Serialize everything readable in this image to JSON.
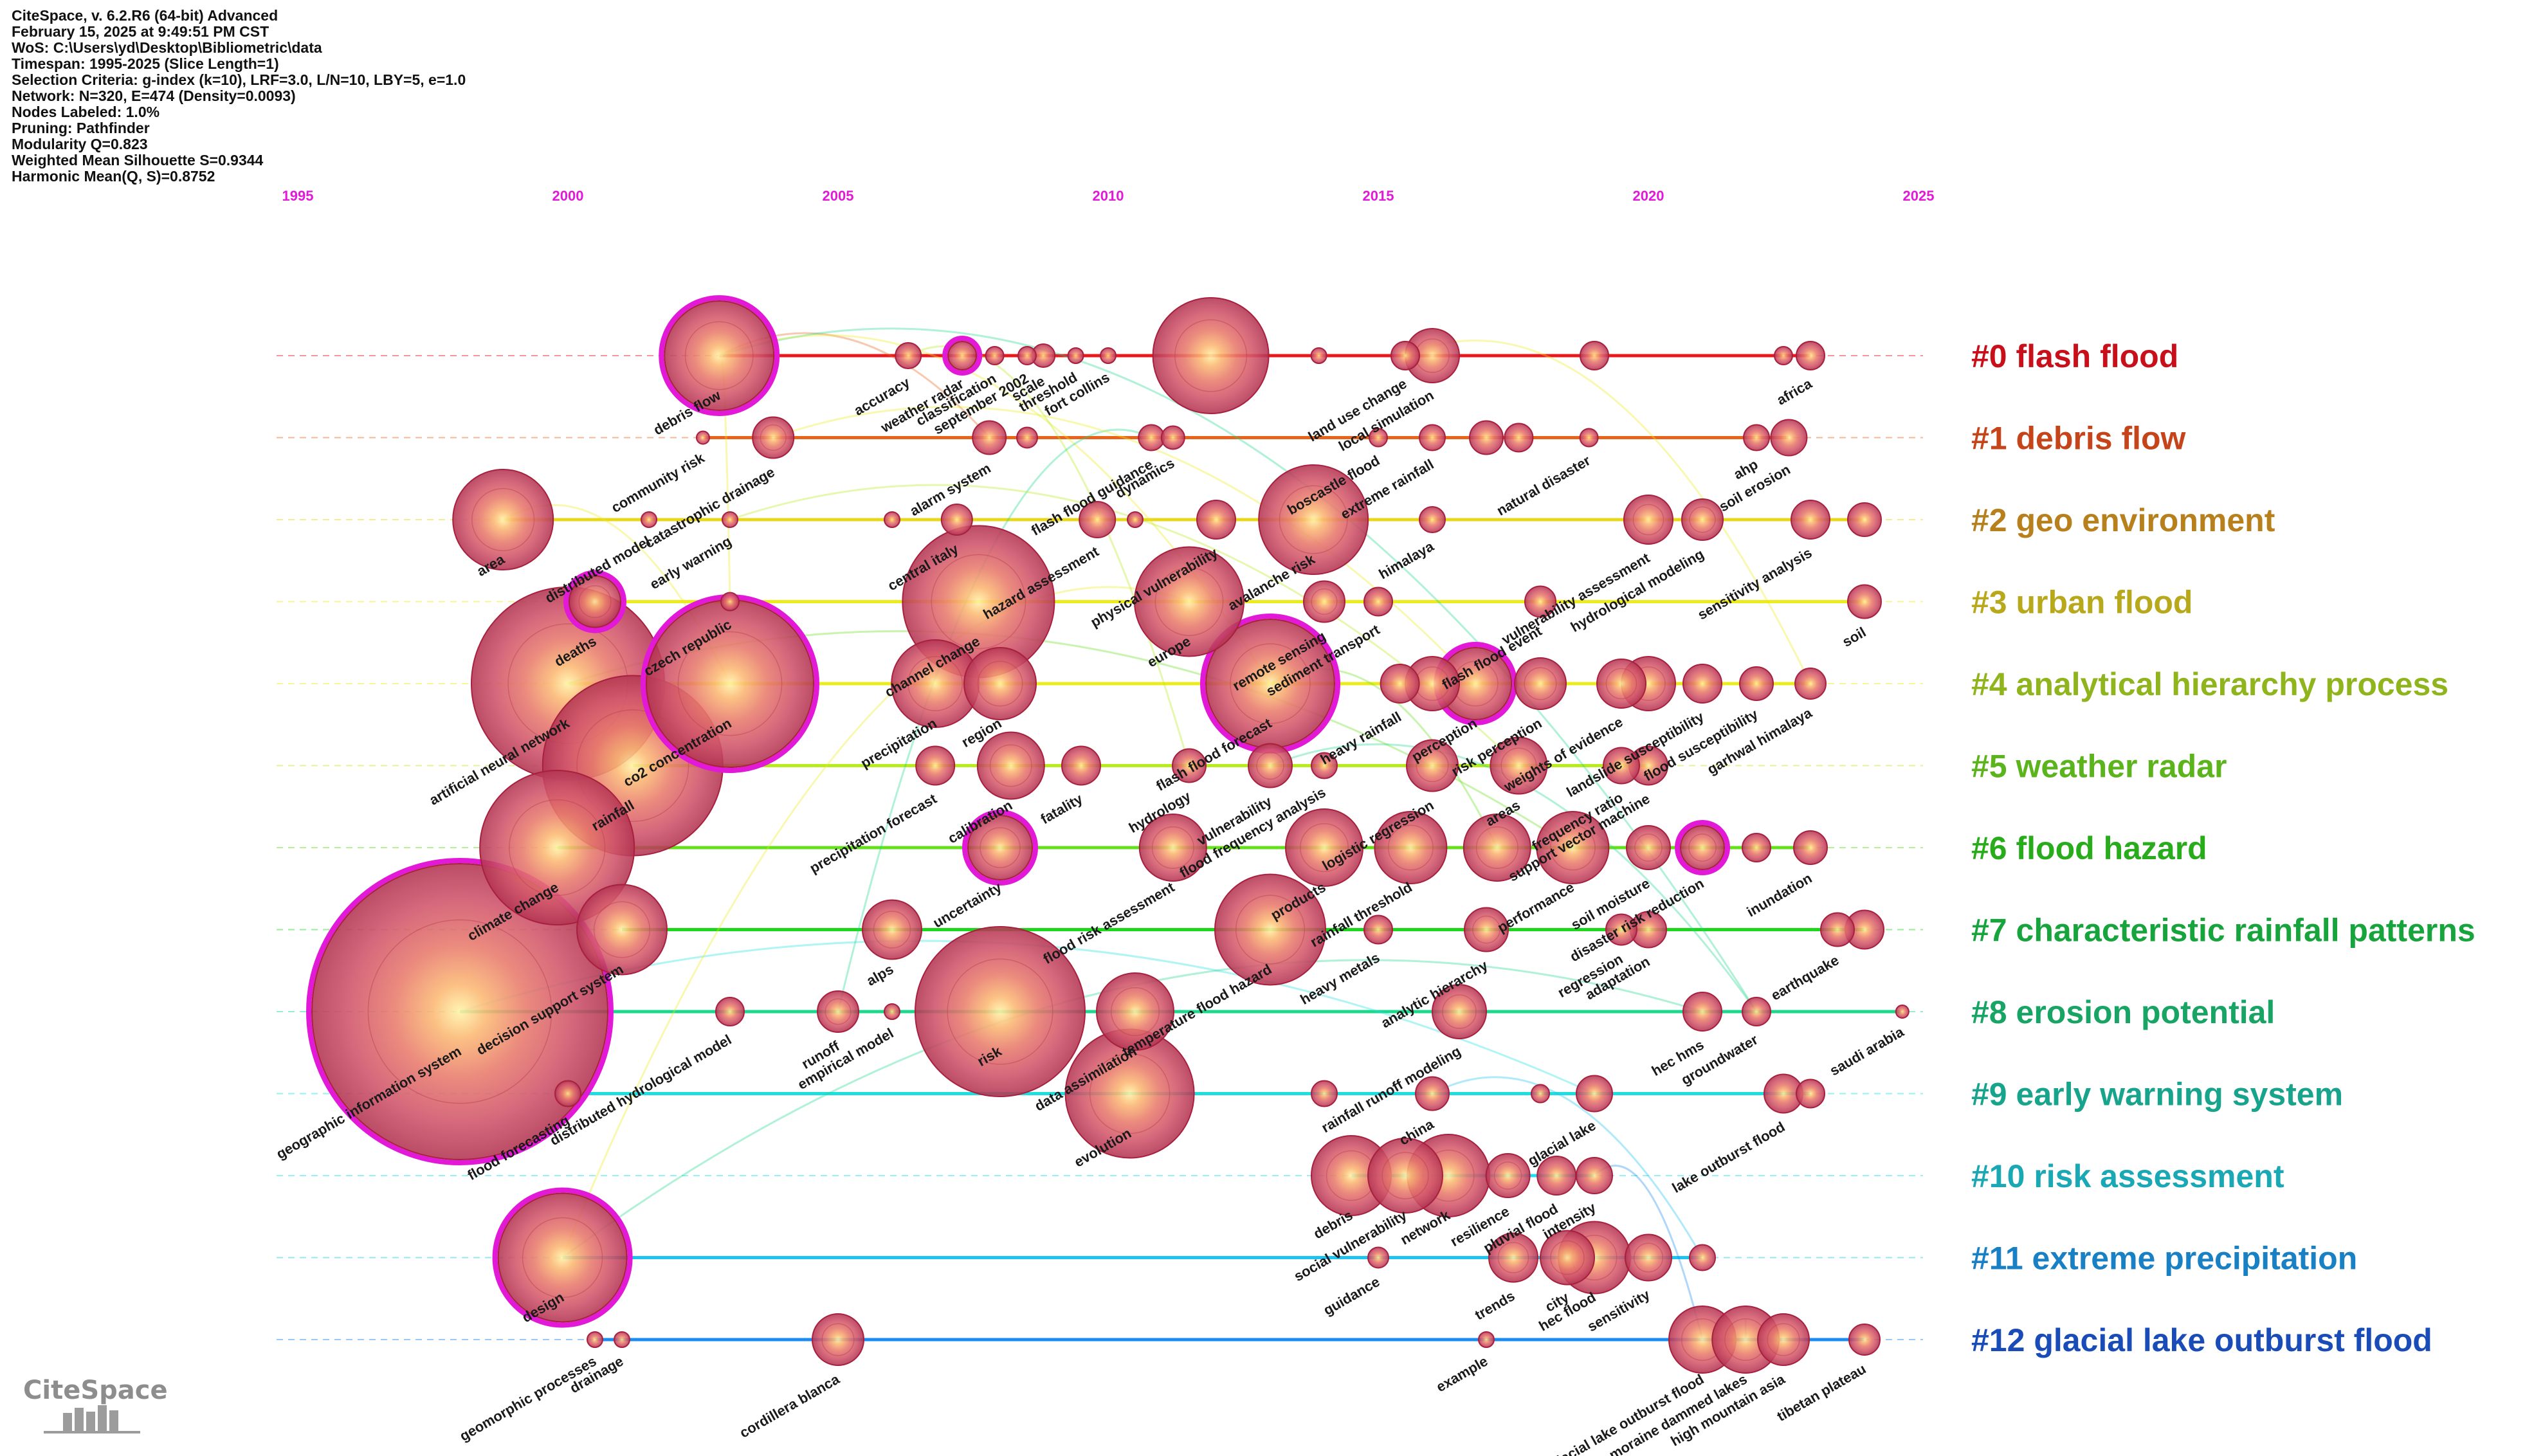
{
  "header": {
    "lines": [
      "CiteSpace, v. 6.2.R6 (64-bit) Advanced",
      "February 15, 2025 at 9:49:51 PM CST",
      "WoS: C:\\Users\\yd\\Desktop\\Bibliometric\\data",
      "Timespan: 1995-2025 (Slice Length=1)",
      "Selection Criteria: g-index (k=10), LRF=3.0, L/N=10, LBY=5, e=1.0",
      "Network: N=320, E=474 (Density=0.0093)",
      "Nodes Labeled: 1.0%",
      "Pruning: Pathfinder",
      "Modularity Q=0.823",
      "Weighted Mean Silhouette S=0.9344",
      "Harmonic Mean(Q, S)=0.8752"
    ]
  },
  "timeline": {
    "year_start": 1995,
    "year_end": 2025,
    "year_labels": [
      "1995",
      "2000",
      "2005",
      "2010",
      "2015",
      "2020",
      "2025"
    ],
    "year_color": "#e21ad8"
  },
  "clusters": [
    {
      "label": "#0 flash flood",
      "color": "#c8101a",
      "line_color": "#e8181c"
    },
    {
      "label": "#1 debris flow",
      "color": "#c5441a",
      "line_color": "#e8641c"
    },
    {
      "label": "#2 geo environment",
      "color": "#b8801c",
      "line_color": "#e8d81c"
    },
    {
      "label": "#3 urban flood",
      "color": "#b8a81c",
      "line_color": "#ecec1c"
    },
    {
      "label": "#4 analytical hierarchy process",
      "color": "#90b41c",
      "line_color": "#ecec1c"
    },
    {
      "label": "#5 weather radar",
      "color": "#5cb41c",
      "line_color": "#b8ec1c"
    },
    {
      "label": "#6 flood hazard",
      "color": "#28ac1c",
      "line_color": "#64e01c"
    },
    {
      "label": "#7 characteristic rainfall patterns",
      "color": "#18a43c",
      "line_color": "#1cd81c"
    },
    {
      "label": "#8 erosion potential",
      "color": "#18a464",
      "line_color": "#1cd88c"
    },
    {
      "label": "#9 early warning system",
      "color": "#18a48c",
      "line_color": "#1ce0e0"
    },
    {
      "label": "#10 risk assessment",
      "color": "#1aa8b4",
      "line_color": "#1ce0f0"
    },
    {
      "label": "#11 extreme precipitation",
      "color": "#1a80c4",
      "line_color": "#1cc4f0"
    },
    {
      "label": "#12 glacial lake outburst flood",
      "color": "#1a4cb8",
      "line_color": "#1c8cf0"
    }
  ],
  "nodes": [
    {
      "c": 0,
      "y": 2002.8,
      "r": 85,
      "ring": true,
      "label": "debris flow"
    },
    {
      "c": 0,
      "y": 2006.3,
      "r": 20,
      "label": "accuracy"
    },
    {
      "c": 0,
      "y": 2007.3,
      "r": 22,
      "ring": true,
      "label": "weather radar"
    },
    {
      "c": 0,
      "y": 2007.9,
      "r": 14,
      "label": "classification"
    },
    {
      "c": 0,
      "y": 2008.8,
      "r": 18,
      "label": "scale"
    },
    {
      "c": 0,
      "y": 2008.5,
      "r": 14,
      "label": "september 2002"
    },
    {
      "c": 0,
      "y": 2009.4,
      "r": 12,
      "label": "threshold"
    },
    {
      "c": 0,
      "y": 2010.0,
      "r": 12,
      "label": "fort collins"
    },
    {
      "c": 0,
      "y": 2011.9,
      "r": 90,
      "label": ""
    },
    {
      "c": 0,
      "y": 2013.9,
      "r": 12,
      "label": ""
    },
    {
      "c": 0,
      "y": 2015.5,
      "r": 22,
      "label": "land use change"
    },
    {
      "c": 0,
      "y": 2016.0,
      "r": 42,
      "label": "local simulation"
    },
    {
      "c": 0,
      "y": 2019.0,
      "r": 22,
      "label": ""
    },
    {
      "c": 0,
      "y": 2022.5,
      "r": 14,
      "label": ""
    },
    {
      "c": 0,
      "y": 2023.0,
      "r": 22,
      "label": "africa"
    },
    {
      "c": 1,
      "y": 2002.5,
      "r": 10,
      "label": "community risk"
    },
    {
      "c": 1,
      "y": 2003.8,
      "r": 32,
      "label": "catastrophic drainage"
    },
    {
      "c": 1,
      "y": 2007.8,
      "r": 26,
      "label": "alarm system"
    },
    {
      "c": 1,
      "y": 2008.5,
      "r": 16,
      "label": ""
    },
    {
      "c": 1,
      "y": 2010.8,
      "r": 20,
      "label": "flash flood guidance"
    },
    {
      "c": 1,
      "y": 2011.2,
      "r": 18,
      "label": "dynamics"
    },
    {
      "c": 1,
      "y": 2015.0,
      "r": 14,
      "label": "boscastle flood"
    },
    {
      "c": 1,
      "y": 2016.0,
      "r": 20,
      "label": "extreme rainfall"
    },
    {
      "c": 1,
      "y": 2017.0,
      "r": 26,
      "label": ""
    },
    {
      "c": 1,
      "y": 2017.6,
      "r": 22,
      "label": ""
    },
    {
      "c": 1,
      "y": 2018.9,
      "r": 14,
      "label": "natural disaster"
    },
    {
      "c": 1,
      "y": 2022.0,
      "r": 20,
      "label": "ahp"
    },
    {
      "c": 1,
      "y": 2022.6,
      "r": 28,
      "label": "soil erosion"
    },
    {
      "c": 2,
      "y": 1998.8,
      "r": 78,
      "label": "area"
    },
    {
      "c": 2,
      "y": 2001.5,
      "r": 12,
      "label": "distributed model"
    },
    {
      "c": 2,
      "y": 2003.0,
      "r": 12,
      "label": "early warning"
    },
    {
      "c": 2,
      "y": 2006.0,
      "r": 12,
      "label": ""
    },
    {
      "c": 2,
      "y": 2007.2,
      "r": 24,
      "label": "central italy"
    },
    {
      "c": 2,
      "y": 2009.8,
      "r": 28,
      "label": "hazard assessment"
    },
    {
      "c": 2,
      "y": 2010.5,
      "r": 12,
      "label": ""
    },
    {
      "c": 2,
      "y": 2012.0,
      "r": 30,
      "label": "physical vulnerability"
    },
    {
      "c": 2,
      "y": 2013.8,
      "r": 85,
      "label": "avalanche risk"
    },
    {
      "c": 2,
      "y": 2016.0,
      "r": 20,
      "label": "himalaya"
    },
    {
      "c": 2,
      "y": 2020.0,
      "r": 38,
      "label": "vulnerability assessment"
    },
    {
      "c": 2,
      "y": 2021.0,
      "r": 32,
      "label": "hydrological modeling"
    },
    {
      "c": 2,
      "y": 2023.0,
      "r": 30,
      "label": "sensitivity analysis"
    },
    {
      "c": 2,
      "y": 2024.0,
      "r": 26,
      "label": ""
    },
    {
      "c": 3,
      "y": 2000.5,
      "r": 40,
      "ring": true,
      "label": "deaths"
    },
    {
      "c": 3,
      "y": 2003.0,
      "r": 14,
      "label": "czech republic"
    },
    {
      "c": 3,
      "y": 2007.6,
      "r": 118,
      "label": "channel change"
    },
    {
      "c": 3,
      "y": 2011.5,
      "r": 85,
      "label": "europe"
    },
    {
      "c": 3,
      "y": 2014.0,
      "r": 32,
      "label": "remote sensing"
    },
    {
      "c": 3,
      "y": 2015.0,
      "r": 22,
      "label": "sediment transport"
    },
    {
      "c": 3,
      "y": 2018.0,
      "r": 24,
      "label": "flash flood event"
    },
    {
      "c": 3,
      "y": 2024.0,
      "r": 26,
      "label": "soil"
    },
    {
      "c": 4,
      "y": 2000.0,
      "r": 150,
      "label": "artificial neural network"
    },
    {
      "c": 4,
      "y": 2003.0,
      "r": 130,
      "ring": true,
      "label": "co2 concentration"
    },
    {
      "c": 4,
      "y": 2006.8,
      "r": 68,
      "label": "precipitation"
    },
    {
      "c": 4,
      "y": 2008.0,
      "r": 56,
      "label": "region"
    },
    {
      "c": 4,
      "y": 2013.0,
      "r": 100,
      "ring": true,
      "label": "flash flood forecast"
    },
    {
      "c": 4,
      "y": 2015.4,
      "r": 30,
      "label": "heavy rainfall"
    },
    {
      "c": 4,
      "y": 2016.0,
      "r": 42,
      "label": ""
    },
    {
      "c": 4,
      "y": 2016.8,
      "r": 56,
      "ring": true,
      "label": "perception"
    },
    {
      "c": 4,
      "y": 2018.0,
      "r": 40,
      "label": "risk perception"
    },
    {
      "c": 4,
      "y": 2019.5,
      "r": 38,
      "label": "weights of evidence"
    },
    {
      "c": 4,
      "y": 2020.0,
      "r": 42,
      "label": ""
    },
    {
      "c": 4,
      "y": 2021.0,
      "r": 30,
      "label": "landslide susceptibility"
    },
    {
      "c": 4,
      "y": 2022.0,
      "r": 26,
      "label": "flood susceptibility"
    },
    {
      "c": 4,
      "y": 2023.0,
      "r": 24,
      "label": "garhwal himalaya"
    },
    {
      "c": 5,
      "y": 2001.2,
      "r": 140,
      "label": "rainfall"
    },
    {
      "c": 5,
      "y": 2006.8,
      "r": 30,
      "label": "precipitation forecast"
    },
    {
      "c": 5,
      "y": 2008.2,
      "r": 52,
      "label": "calibration"
    },
    {
      "c": 5,
      "y": 2009.5,
      "r": 30,
      "label": "fatality"
    },
    {
      "c": 5,
      "y": 2011.5,
      "r": 26,
      "label": "hydrology"
    },
    {
      "c": 5,
      "y": 2013.0,
      "r": 34,
      "label": "vulnerability"
    },
    {
      "c": 5,
      "y": 2014.0,
      "r": 20,
      "label": "flood frequency analysis"
    },
    {
      "c": 5,
      "y": 2016.0,
      "r": 40,
      "label": "logistic regression"
    },
    {
      "c": 5,
      "y": 2017.6,
      "r": 44,
      "label": "areas"
    },
    {
      "c": 5,
      "y": 2019.5,
      "r": 28,
      "label": "frequency ratio"
    },
    {
      "c": 5,
      "y": 2020.0,
      "r": 30,
      "label": "support vector machine"
    },
    {
      "c": 6,
      "y": 1999.8,
      "r": 120,
      "label": "climate change"
    },
    {
      "c": 6,
      "y": 2008.0,
      "r": 50,
      "ring": true,
      "label": "uncertainty"
    },
    {
      "c": 6,
      "y": 2011.2,
      "r": 52,
      "label": "flood risk assessment"
    },
    {
      "c": 6,
      "y": 2014.0,
      "r": 60,
      "label": "products"
    },
    {
      "c": 6,
      "y": 2015.6,
      "r": 56,
      "label": "rainfall threshold"
    },
    {
      "c": 6,
      "y": 2017.2,
      "r": 52,
      "label": ""
    },
    {
      "c": 6,
      "y": 2018.6,
      "r": 56,
      "label": "performance"
    },
    {
      "c": 6,
      "y": 2020.0,
      "r": 34,
      "label": "soil moisture"
    },
    {
      "c": 6,
      "y": 2021.0,
      "r": 34,
      "ring": true,
      "label": "disaster risk reduction"
    },
    {
      "c": 6,
      "y": 2022.0,
      "r": 22,
      "label": ""
    },
    {
      "c": 6,
      "y": 2023.0,
      "r": 26,
      "label": "inundation"
    },
    {
      "c": 7,
      "y": 2001.0,
      "r": 70,
      "label": "decision support system"
    },
    {
      "c": 7,
      "y": 2006.0,
      "r": 46,
      "label": "alps"
    },
    {
      "c": 7,
      "y": 2013.0,
      "r": 86,
      "label": "temperature flood hazard"
    },
    {
      "c": 7,
      "y": 2015.0,
      "r": 22,
      "label": "heavy metals"
    },
    {
      "c": 7,
      "y": 2017.0,
      "r": 34,
      "label": "analytic hierarchy"
    },
    {
      "c": 7,
      "y": 2019.5,
      "r": 24,
      "label": "regression"
    },
    {
      "c": 7,
      "y": 2020.0,
      "r": 28,
      "label": "adaptation"
    },
    {
      "c": 7,
      "y": 2023.5,
      "r": 26,
      "label": "earthquake"
    },
    {
      "c": 7,
      "y": 2024.0,
      "r": 30,
      "label": ""
    },
    {
      "c": 8,
      "y": 1998.0,
      "r": 230,
      "ring": true,
      "label": "geographic information system"
    },
    {
      "c": 8,
      "y": 2003.0,
      "r": 22,
      "label": "distributed hydrological model"
    },
    {
      "c": 8,
      "y": 2005.0,
      "r": 32,
      "label": "runoff"
    },
    {
      "c": 8,
      "y": 2006.0,
      "r": 12,
      "label": "empirical model"
    },
    {
      "c": 8,
      "y": 2008.0,
      "r": 132,
      "label": "risk"
    },
    {
      "c": 8,
      "y": 2010.5,
      "r": 60,
      "label": "data assimilation"
    },
    {
      "c": 8,
      "y": 2016.5,
      "r": 42,
      "label": "rainfall runoff modeling"
    },
    {
      "c": 8,
      "y": 2021.0,
      "r": 30,
      "label": "hec hms"
    },
    {
      "c": 8,
      "y": 2022.0,
      "r": 22,
      "label": "groundwater"
    },
    {
      "c": 8,
      "y": 2024.7,
      "r": 10,
      "label": "saudi arabia"
    },
    {
      "c": 9,
      "y": 2000.0,
      "r": 20,
      "label": "flood forecasting"
    },
    {
      "c": 9,
      "y": 2010.4,
      "r": 100,
      "label": "evolution"
    },
    {
      "c": 9,
      "y": 2014.0,
      "r": 20,
      "label": ""
    },
    {
      "c": 9,
      "y": 2016.0,
      "r": 26,
      "label": "china"
    },
    {
      "c": 9,
      "y": 2018.0,
      "r": 14,
      "label": ""
    },
    {
      "c": 9,
      "y": 2019.0,
      "r": 28,
      "label": "glacial lake"
    },
    {
      "c": 9,
      "y": 2022.5,
      "r": 30,
      "label": "lake outburst flood"
    },
    {
      "c": 9,
      "y": 2023.0,
      "r": 22,
      "label": ""
    },
    {
      "c": 10,
      "y": 2014.5,
      "r": 62,
      "label": "debris"
    },
    {
      "c": 10,
      "y": 2015.5,
      "r": 58,
      "label": "social vulnerability"
    },
    {
      "c": 10,
      "y": 2016.3,
      "r": 64,
      "label": "network"
    },
    {
      "c": 10,
      "y": 2017.4,
      "r": 34,
      "label": "resilience"
    },
    {
      "c": 10,
      "y": 2018.3,
      "r": 30,
      "label": "pluvial flood"
    },
    {
      "c": 10,
      "y": 2019.0,
      "r": 28,
      "label": "intensity"
    },
    {
      "c": 11,
      "y": 1999.9,
      "r": 100,
      "ring": true,
      "label": "design"
    },
    {
      "c": 11,
      "y": 2015.0,
      "r": 16,
      "label": "guidance"
    },
    {
      "c": 11,
      "y": 2017.5,
      "r": 38,
      "label": "trends"
    },
    {
      "c": 11,
      "y": 2018.5,
      "r": 42,
      "label": "city"
    },
    {
      "c": 11,
      "y": 2019.0,
      "r": 56,
      "label": "hec flood"
    },
    {
      "c": 11,
      "y": 2020.0,
      "r": 36,
      "label": "sensitivity"
    },
    {
      "c": 11,
      "y": 2021.0,
      "r": 20,
      "label": ""
    },
    {
      "c": 12,
      "y": 2000.5,
      "r": 12,
      "label": "geomorphic processes"
    },
    {
      "c": 12,
      "y": 2001.0,
      "r": 12,
      "label": "drainage"
    },
    {
      "c": 12,
      "y": 2005.0,
      "r": 40,
      "label": "cordillera blanca"
    },
    {
      "c": 12,
      "y": 2017.0,
      "r": 12,
      "label": "example"
    },
    {
      "c": 12,
      "y": 2021.0,
      "r": 52,
      "label": "glacial lake outburst flood"
    },
    {
      "c": 12,
      "y": 2021.8,
      "r": 52,
      "label": "moraine dammed lakes"
    },
    {
      "c": 12,
      "y": 2022.5,
      "r": 40,
      "label": "high mountain asia"
    },
    {
      "c": 12,
      "y": 2024.0,
      "r": 24,
      "label": "tibetan plateau"
    }
  ],
  "edges": [
    [
      0,
      0,
      3,
      1
    ],
    [
      0,
      0,
      1,
      2
    ],
    [
      0,
      0,
      8,
      8
    ],
    [
      0,
      0,
      4,
      4
    ],
    [
      0,
      1,
      5,
      4
    ],
    [
      2,
      0,
      4,
      1
    ],
    [
      4,
      0,
      6,
      6
    ],
    [
      8,
      0,
      9,
      5
    ],
    [
      11,
      0,
      8,
      7
    ],
    [
      11,
      0,
      3,
      3
    ],
    [
      12,
      5,
      12,
      5
    ],
    [
      7,
      1,
      10,
      6
    ],
    [
      4,
      4,
      6,
      5
    ],
    [
      5,
      5,
      8,
      8
    ],
    [
      7,
      2,
      10,
      6
    ],
    [
      1,
      4,
      8,
      2
    ],
    [
      0,
      8,
      6,
      11
    ],
    [
      2,
      2,
      5,
      8
    ],
    [
      3,
      4,
      7,
      10
    ],
    [
      6,
      6,
      9,
      9
    ],
    [
      1,
      1,
      4,
      7
    ],
    [
      10,
      5,
      12,
      4
    ],
    [
      9,
      3,
      11,
      6
    ],
    [
      0,
      10,
      4,
      13
    ]
  ],
  "footer": {
    "logo_text": "CiteSpace"
  }
}
